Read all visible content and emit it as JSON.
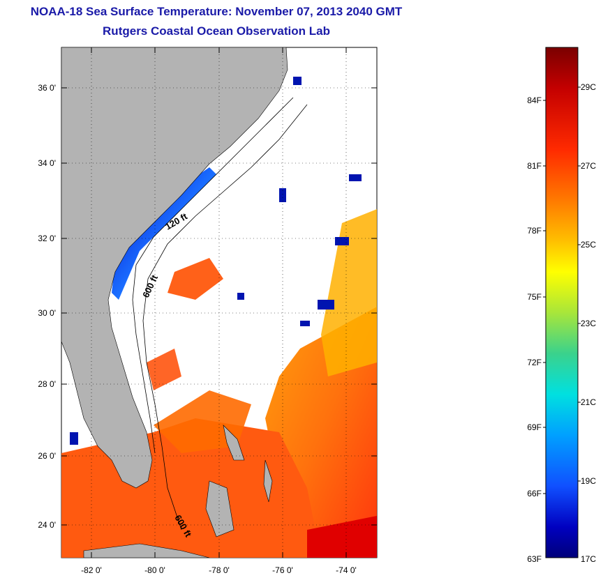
{
  "title": {
    "line1": "NOAA-18 Sea Surface Temperature:  November 07, 2013 2040 GMT",
    "line2": "Rutgers Coastal Ocean Observation Lab"
  },
  "map": {
    "lat_ticks": [
      "36 0'",
      "34 0'",
      "32 0'",
      "30 0'",
      "28 0'",
      "26 0'",
      "24 0'"
    ],
    "lon_ticks": [
      "-82 0'",
      "-80 0'",
      "-78 0'",
      "-76 0'",
      "-74 0'"
    ],
    "contour_labels": [
      "120 ft",
      "600 ft",
      "600 ft"
    ]
  },
  "colorbar": {
    "fahrenheit": [
      "84F",
      "81F",
      "78F",
      "75F",
      "72F",
      "69F",
      "66F",
      "63F"
    ],
    "celsius": [
      "29C",
      "27C",
      "25C",
      "23C",
      "21C",
      "19C",
      "17C"
    ],
    "colors": [
      "#7a0000",
      "#c40000",
      "#ff2a00",
      "#ff7a00",
      "#ffc000",
      "#ffff00",
      "#a8e63a",
      "#3ad28c",
      "#00e0e0",
      "#00a0ff",
      "#1050ff",
      "#0000c0",
      "#00007a"
    ]
  },
  "colors": {
    "land": "#b3b3b3",
    "title": "#1a1aa8"
  }
}
